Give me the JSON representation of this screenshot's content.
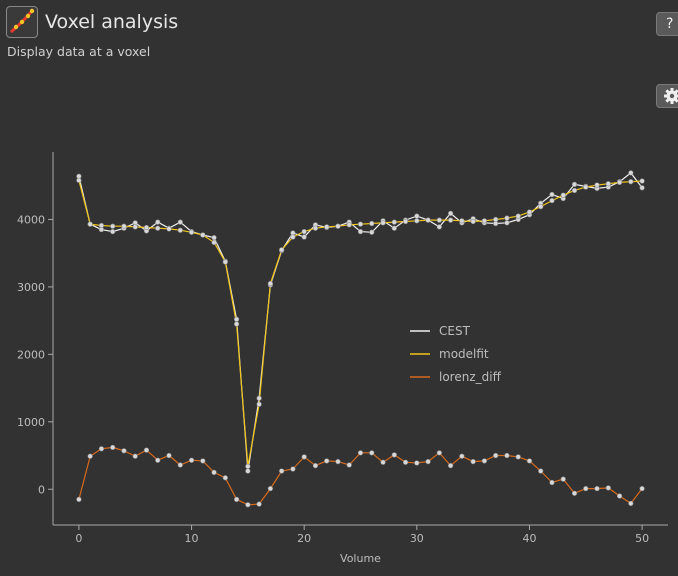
{
  "header": {
    "title": "Voxel analysis",
    "subtitle": "Display data at a voxel",
    "help_label": "?"
  },
  "icons": {
    "app": "voxel-analysis-icon",
    "options": "gear-icon"
  },
  "chart_data": {
    "type": "line",
    "xlabel": "Volume",
    "ylabel": "",
    "xlim": [
      -2.3,
      52.3
    ],
    "ylim": [
      -530,
      5000
    ],
    "xticks": [
      0,
      10,
      20,
      30,
      40,
      50
    ],
    "yticks": [
      0,
      1000,
      2000,
      3000,
      4000
    ],
    "legend_position": "center-right",
    "grid": false,
    "x": [
      0,
      1,
      2,
      3,
      4,
      5,
      6,
      7,
      8,
      9,
      10,
      11,
      12,
      13,
      14,
      15,
      16,
      17,
      18,
      19,
      20,
      21,
      22,
      23,
      24,
      25,
      26,
      27,
      28,
      29,
      30,
      31,
      32,
      33,
      34,
      35,
      36,
      37,
      38,
      39,
      40,
      41,
      42,
      43,
      44,
      45,
      46,
      47,
      48,
      49,
      50
    ],
    "series": [
      {
        "name": "CEST",
        "color": "#f0f0f0",
        "values": [
          4640,
          3930,
          3850,
          3820,
          3870,
          3950,
          3830,
          3960,
          3870,
          3960,
          3820,
          3770,
          3730,
          3380,
          2520,
          270,
          1350,
          3030,
          3540,
          3800,
          3740,
          3920,
          3880,
          3900,
          3960,
          3820,
          3810,
          3980,
          3870,
          3990,
          4050,
          3990,
          3890,
          4090,
          3950,
          4010,
          3950,
          3940,
          3950,
          4000,
          4070,
          4240,
          4370,
          4310,
          4520,
          4490,
          4460,
          4480,
          4560,
          4690,
          4470
        ]
      },
      {
        "name": "modelfit",
        "color": "#f0c419",
        "values": [
          4580,
          3930,
          3910,
          3900,
          3900,
          3890,
          3880,
          3870,
          3860,
          3840,
          3810,
          3770,
          3660,
          3370,
          2450,
          340,
          1260,
          3050,
          3550,
          3740,
          3820,
          3870,
          3890,
          3900,
          3920,
          3930,
          3940,
          3950,
          3960,
          3970,
          3980,
          3990,
          3990,
          3990,
          3980,
          3970,
          3980,
          4000,
          4020,
          4050,
          4110,
          4190,
          4280,
          4360,
          4430,
          4480,
          4510,
          4530,
          4550,
          4560,
          4570
        ]
      },
      {
        "name": "lorenz_diff",
        "color": "#d86a1c",
        "values": [
          -150,
          490,
          600,
          620,
          570,
          490,
          580,
          430,
          500,
          360,
          430,
          420,
          250,
          170,
          -150,
          -230,
          -220,
          10,
          270,
          300,
          480,
          350,
          420,
          410,
          360,
          540,
          540,
          400,
          510,
          400,
          390,
          410,
          540,
          350,
          490,
          410,
          420,
          500,
          500,
          480,
          420,
          270,
          100,
          150,
          -60,
          10,
          10,
          20,
          -100,
          -210,
          10
        ]
      }
    ]
  }
}
